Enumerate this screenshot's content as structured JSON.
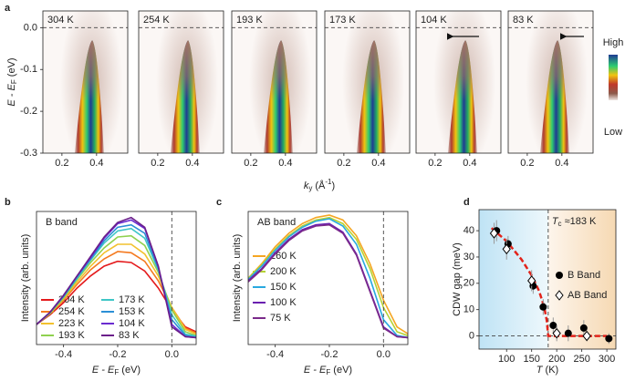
{
  "chart_data": [
    {
      "type": "arpes_panels",
      "label": "a",
      "panels": [
        "304 K",
        "254 K",
        "193 K",
        "173 K",
        "104 K",
        "83 K"
      ],
      "ylim": [
        -0.3,
        0.04
      ],
      "yticks": [
        -0.3,
        -0.2,
        -0.1,
        {
          "value": 0,
          "label": "0.0"
        }
      ],
      "xlim": [
        0.09,
        0.58
      ],
      "xticks": [
        0.2,
        0.4
      ],
      "hline": 0,
      "ylabel": [
        {
          "text": "E - E",
          "style": "italic"
        },
        {
          "text": "F",
          "baseline": "sub"
        },
        {
          "text": " (eV)"
        }
      ],
      "xlabel": [
        {
          "text": "k",
          "style": "italic"
        },
        {
          "text": "y",
          "baseline": "sub"
        },
        {
          "text": " (Å"
        },
        {
          "text": "-1",
          "baseline": "sup"
        },
        {
          "text": ")"
        }
      ],
      "colorbar": {
        "high": "High",
        "low": "Low"
      }
    },
    {
      "type": "line",
      "label": "b",
      "title": "B band",
      "x": [
        -0.5,
        -0.45,
        -0.4,
        -0.35,
        -0.3,
        -0.25,
        -0.2,
        -0.15,
        -0.1,
        -0.05,
        0,
        0.05,
        0.1
      ],
      "xlim": [
        -0.5,
        0.09
      ],
      "xticks": [
        -0.4,
        -0.2,
        {
          "value": 0,
          "label": "0.0"
        }
      ],
      "ylim": [
        0,
        1.05
      ],
      "vline": 0,
      "ylabel": [
        {
          "text": "Intensity (arb. units)"
        }
      ],
      "xlabel": [
        {
          "text": "E - E",
          "style": "italic"
        },
        {
          "text": "F",
          "baseline": "sub"
        },
        {
          "text": " (eV)"
        }
      ],
      "series": [
        {
          "name": "304 K",
          "color": "#e41a1c",
          "values": [
            0.12,
            0.2,
            0.3,
            0.42,
            0.52,
            0.6,
            0.64,
            0.63,
            0.56,
            0.42,
            0.24,
            0.1,
            0.05
          ]
        },
        {
          "name": "254 K",
          "color": "#f47a20",
          "values": [
            0.12,
            0.21,
            0.32,
            0.45,
            0.57,
            0.66,
            0.72,
            0.71,
            0.64,
            0.48,
            0.26,
            0.09,
            0.04
          ]
        },
        {
          "name": "223 K",
          "color": "#f2c12e",
          "values": [
            0.12,
            0.21,
            0.33,
            0.47,
            0.6,
            0.71,
            0.78,
            0.78,
            0.7,
            0.52,
            0.26,
            0.08,
            0.03
          ]
        },
        {
          "name": "193 K",
          "color": "#8fd14f",
          "values": [
            0.12,
            0.21,
            0.34,
            0.49,
            0.63,
            0.75,
            0.84,
            0.85,
            0.77,
            0.55,
            0.24,
            0.06,
            0.02
          ]
        },
        {
          "name": "173 K",
          "color": "#3ec6c6",
          "values": [
            0.12,
            0.22,
            0.35,
            0.5,
            0.65,
            0.79,
            0.89,
            0.91,
            0.83,
            0.57,
            0.2,
            0.04,
            0.02
          ]
        },
        {
          "name": "153 K",
          "color": "#2b8fd6",
          "values": [
            0.12,
            0.22,
            0.35,
            0.51,
            0.66,
            0.81,
            0.92,
            0.94,
            0.87,
            0.58,
            0.16,
            0.03,
            0.01
          ]
        },
        {
          "name": "104 K",
          "color": "#6a2bd0",
          "values": [
            0.12,
            0.22,
            0.36,
            0.52,
            0.67,
            0.83,
            0.95,
            0.98,
            0.91,
            0.6,
            0.12,
            0.02,
            0.01
          ]
        },
        {
          "name": "83 K",
          "color": "#6b1f8a",
          "values": [
            0.12,
            0.22,
            0.36,
            0.52,
            0.68,
            0.84,
            0.96,
            1.0,
            0.92,
            0.6,
            0.1,
            0.02,
            0.01
          ]
        }
      ]
    },
    {
      "type": "line",
      "label": "c",
      "title": "AB band",
      "x": [
        -0.5,
        -0.45,
        -0.4,
        -0.35,
        -0.3,
        -0.25,
        -0.2,
        -0.15,
        -0.1,
        -0.05,
        0,
        0.05,
        0.1
      ],
      "xlim": [
        -0.5,
        0.09
      ],
      "xticks": [
        -0.4,
        -0.2,
        {
          "value": 0,
          "label": "0.0"
        }
      ],
      "ylim": [
        0,
        1.05
      ],
      "vline": 0,
      "ylabel": [
        {
          "text": "Intensity (arb. units)"
        }
      ],
      "xlabel": [
        {
          "text": "E - E",
          "style": "italic"
        },
        {
          "text": "F",
          "baseline": "sub"
        },
        {
          "text": " (eV)"
        }
      ],
      "series": [
        {
          "name": "260 K",
          "color": "#f5a623",
          "values": [
            0.5,
            0.62,
            0.76,
            0.87,
            0.95,
            1.0,
            1.02,
            0.98,
            0.85,
            0.62,
            0.32,
            0.1,
            0.03
          ]
        },
        {
          "name": "200 K",
          "color": "#b5d334",
          "values": [
            0.5,
            0.61,
            0.74,
            0.85,
            0.93,
            0.98,
            1.0,
            0.95,
            0.82,
            0.58,
            0.26,
            0.06,
            0.02
          ]
        },
        {
          "name": "150 K",
          "color": "#29a9e0",
          "values": [
            0.49,
            0.6,
            0.73,
            0.84,
            0.92,
            0.97,
            0.99,
            0.93,
            0.78,
            0.5,
            0.16,
            0.03,
            0.01
          ]
        },
        {
          "name": "100 K",
          "color": "#6a1fb0",
          "values": [
            0.48,
            0.58,
            0.71,
            0.82,
            0.9,
            0.94,
            0.95,
            0.88,
            0.7,
            0.4,
            0.1,
            0.02,
            0.01
          ]
        },
        {
          "name": "75 K",
          "color": "#7b2a8a",
          "values": [
            0.47,
            0.57,
            0.7,
            0.81,
            0.89,
            0.93,
            0.94,
            0.87,
            0.69,
            0.39,
            0.09,
            0.02,
            0.01
          ]
        }
      ]
    },
    {
      "type": "scatter",
      "label": "d",
      "xlim": [
        45,
        318
      ],
      "xticks": [
        100,
        150,
        200,
        250,
        300
      ],
      "ylim": [
        -5,
        48
      ],
      "yticks": [
        0,
        10,
        20,
        30,
        40
      ],
      "hline": 0,
      "tc": 183,
      "annotation": [
        {
          "text": "T",
          "style": "italic"
        },
        {
          "text": "c",
          "baseline": "sub"
        },
        {
          "text": " ≈183 K"
        }
      ],
      "ylabel": [
        {
          "text": "CDW gap (meV)"
        }
      ],
      "xlabel": [
        {
          "text": "T",
          "style": "italic"
        },
        {
          "text": " (K)"
        }
      ],
      "series": [
        {
          "name": "B Band",
          "marker": "circle",
          "color": "#000000",
          "x": [
            80,
            103,
            153,
            173,
            193,
            223,
            254,
            304
          ],
          "values": [
            40,
            35,
            19,
            11,
            4,
            1,
            3,
            -1
          ],
          "errors": [
            4,
            3,
            3,
            3,
            3,
            3,
            3,
            2
          ]
        },
        {
          "name": "AB Band",
          "marker": "diamond",
          "color": "#000000",
          "x": [
            75,
            100,
            150,
            200,
            260
          ],
          "values": [
            39,
            33,
            21,
            1,
            0
          ],
          "errors": [
            4,
            4,
            4,
            3,
            2
          ]
        }
      ],
      "fit": {
        "color": "#e2231a",
        "x": [
          70,
          100,
          130,
          150,
          165,
          175,
          180,
          183,
          190,
          220,
          250,
          300
        ],
        "values": [
          41,
          36,
          29,
          23,
          17,
          11,
          6,
          0,
          0,
          0,
          0,
          0
        ]
      }
    }
  ]
}
